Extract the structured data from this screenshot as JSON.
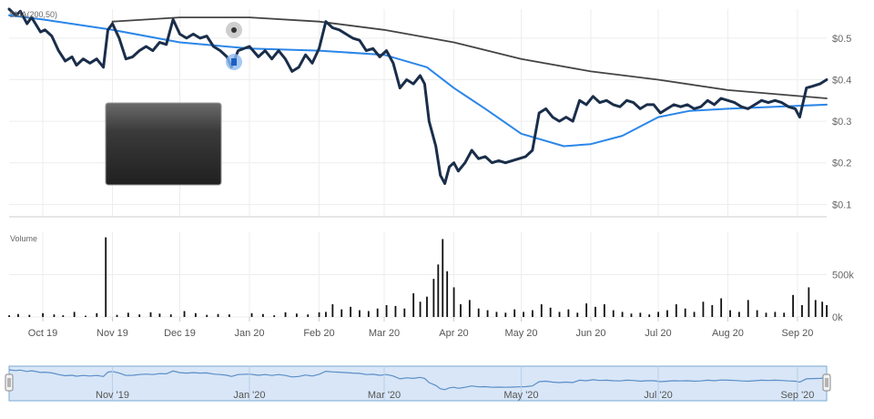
{
  "chart_data": {
    "type": "line",
    "indicator_label": "SMA(200,50)",
    "volume_label": "Volume",
    "price_axis": {
      "ticks": [
        0.1,
        0.2,
        0.3,
        0.4,
        0.5
      ],
      "tick_labels": [
        "$0.1",
        "$0.2",
        "$0.3",
        "$0.4",
        "$0.5"
      ],
      "range": [
        0.07,
        0.57
      ]
    },
    "volume_axis": {
      "ticks": [
        0,
        500000
      ],
      "tick_labels": [
        "0k",
        "500k"
      ],
      "range": [
        0,
        1000000
      ]
    },
    "x_range": [
      "2019-09-16",
      "2020-09-14"
    ],
    "date_labels": [
      {
        "date": "2019-10-01",
        "label": "Oct 19"
      },
      {
        "date": "2019-11-01",
        "label": "Nov 19"
      },
      {
        "date": "2019-12-01",
        "label": "Dec 19"
      },
      {
        "date": "2020-01-01",
        "label": "Jan 20"
      },
      {
        "date": "2020-02-01",
        "label": "Feb 20"
      },
      {
        "date": "2020-03-01",
        "label": "Mar 20"
      },
      {
        "date": "2020-04-01",
        "label": "Apr 20"
      },
      {
        "date": "2020-05-01",
        "label": "May 20"
      },
      {
        "date": "2020-06-01",
        "label": "Jun 20"
      },
      {
        "date": "2020-07-01",
        "label": "Jul 20"
      },
      {
        "date": "2020-08-01",
        "label": "Aug 20"
      },
      {
        "date": "2020-09-01",
        "label": "Sep 20"
      }
    ],
    "navigator_labels": [
      {
        "date": "2019-11-01",
        "label": "Nov '19"
      },
      {
        "date": "2020-01-01",
        "label": "Jan '20"
      },
      {
        "date": "2020-03-01",
        "label": "Mar '20"
      },
      {
        "date": "2020-05-01",
        "label": "May '20"
      },
      {
        "date": "2020-07-01",
        "label": "Jul '20"
      },
      {
        "date": "2020-09-01",
        "label": "Sep '20"
      }
    ],
    "series": [
      {
        "kind": "price",
        "color": "#1a2e4a",
        "points": [
          [
            "2019-09-16",
            0.57
          ],
          [
            "2019-09-19",
            0.555
          ],
          [
            "2019-09-21",
            0.565
          ],
          [
            "2019-09-24",
            0.535
          ],
          [
            "2019-09-26",
            0.55
          ],
          [
            "2019-09-30",
            0.515
          ],
          [
            "2019-10-02",
            0.52
          ],
          [
            "2019-10-05",
            0.505
          ],
          [
            "2019-10-08",
            0.47
          ],
          [
            "2019-10-11",
            0.445
          ],
          [
            "2019-10-14",
            0.455
          ],
          [
            "2019-10-16",
            0.435
          ],
          [
            "2019-10-19",
            0.45
          ],
          [
            "2019-10-22",
            0.44
          ],
          [
            "2019-10-25",
            0.45
          ],
          [
            "2019-10-28",
            0.43
          ],
          [
            "2019-10-30",
            0.52
          ],
          [
            "2019-11-01",
            0.535
          ],
          [
            "2019-11-04",
            0.5
          ],
          [
            "2019-11-07",
            0.45
          ],
          [
            "2019-11-10",
            0.455
          ],
          [
            "2019-11-13",
            0.47
          ],
          [
            "2019-11-16",
            0.48
          ],
          [
            "2019-11-19",
            0.47
          ],
          [
            "2019-11-22",
            0.49
          ],
          [
            "2019-11-25",
            0.485
          ],
          [
            "2019-11-28",
            0.545
          ],
          [
            "2019-12-01",
            0.51
          ],
          [
            "2019-12-04",
            0.5
          ],
          [
            "2019-12-07",
            0.51
          ],
          [
            "2019-12-10",
            0.5
          ],
          [
            "2019-12-13",
            0.505
          ],
          [
            "2019-12-16",
            0.48
          ],
          [
            "2019-12-19",
            0.47
          ],
          [
            "2019-12-22",
            0.455
          ],
          [
            "2019-12-24",
            0.43
          ],
          [
            "2019-12-27",
            0.47
          ],
          [
            "2020-01-01",
            0.48
          ],
          [
            "2020-01-05",
            0.455
          ],
          [
            "2020-01-08",
            0.47
          ],
          [
            "2020-01-11",
            0.45
          ],
          [
            "2020-01-14",
            0.47
          ],
          [
            "2020-01-17",
            0.45
          ],
          [
            "2020-01-20",
            0.42
          ],
          [
            "2020-01-23",
            0.43
          ],
          [
            "2020-01-26",
            0.46
          ],
          [
            "2020-01-29",
            0.44
          ],
          [
            "2020-02-01",
            0.475
          ],
          [
            "2020-02-04",
            0.54
          ],
          [
            "2020-02-07",
            0.525
          ],
          [
            "2020-02-10",
            0.52
          ],
          [
            "2020-02-13",
            0.51
          ],
          [
            "2020-02-16",
            0.5
          ],
          [
            "2020-02-19",
            0.495
          ],
          [
            "2020-02-22",
            0.47
          ],
          [
            "2020-02-25",
            0.475
          ],
          [
            "2020-02-28",
            0.455
          ],
          [
            "2020-03-02",
            0.47
          ],
          [
            "2020-03-05",
            0.44
          ],
          [
            "2020-03-08",
            0.38
          ],
          [
            "2020-03-11",
            0.4
          ],
          [
            "2020-03-14",
            0.39
          ],
          [
            "2020-03-17",
            0.41
          ],
          [
            "2020-03-19",
            0.39
          ],
          [
            "2020-03-21",
            0.3
          ],
          [
            "2020-03-24",
            0.24
          ],
          [
            "2020-03-26",
            0.17
          ],
          [
            "2020-03-28",
            0.15
          ],
          [
            "2020-03-30",
            0.19
          ],
          [
            "2020-04-01",
            0.2
          ],
          [
            "2020-04-03",
            0.18
          ],
          [
            "2020-04-06",
            0.2
          ],
          [
            "2020-04-09",
            0.23
          ],
          [
            "2020-04-12",
            0.21
          ],
          [
            "2020-04-15",
            0.215
          ],
          [
            "2020-04-18",
            0.2
          ],
          [
            "2020-04-21",
            0.205
          ],
          [
            "2020-04-24",
            0.2
          ],
          [
            "2020-04-27",
            0.205
          ],
          [
            "2020-04-30",
            0.21
          ],
          [
            "2020-05-03",
            0.215
          ],
          [
            "2020-05-06",
            0.23
          ],
          [
            "2020-05-09",
            0.32
          ],
          [
            "2020-05-12",
            0.33
          ],
          [
            "2020-05-15",
            0.31
          ],
          [
            "2020-05-18",
            0.3
          ],
          [
            "2020-05-21",
            0.31
          ],
          [
            "2020-05-24",
            0.3
          ],
          [
            "2020-05-27",
            0.35
          ],
          [
            "2020-05-30",
            0.34
          ],
          [
            "2020-06-02",
            0.36
          ],
          [
            "2020-06-05",
            0.345
          ],
          [
            "2020-06-08",
            0.35
          ],
          [
            "2020-06-11",
            0.34
          ],
          [
            "2020-06-14",
            0.335
          ],
          [
            "2020-06-17",
            0.35
          ],
          [
            "2020-06-20",
            0.345
          ],
          [
            "2020-06-23",
            0.33
          ],
          [
            "2020-06-26",
            0.34
          ],
          [
            "2020-06-29",
            0.34
          ],
          [
            "2020-07-02",
            0.32
          ],
          [
            "2020-07-05",
            0.33
          ],
          [
            "2020-07-08",
            0.34
          ],
          [
            "2020-07-11",
            0.335
          ],
          [
            "2020-07-14",
            0.34
          ],
          [
            "2020-07-17",
            0.33
          ],
          [
            "2020-07-20",
            0.335
          ],
          [
            "2020-07-23",
            0.35
          ],
          [
            "2020-07-26",
            0.34
          ],
          [
            "2020-07-29",
            0.355
          ],
          [
            "2020-08-01",
            0.35
          ],
          [
            "2020-08-04",
            0.345
          ],
          [
            "2020-08-07",
            0.335
          ],
          [
            "2020-08-10",
            0.33
          ],
          [
            "2020-08-13",
            0.34
          ],
          [
            "2020-08-16",
            0.35
          ],
          [
            "2020-08-19",
            0.345
          ],
          [
            "2020-08-22",
            0.35
          ],
          [
            "2020-08-25",
            0.345
          ],
          [
            "2020-08-28",
            0.335
          ],
          [
            "2020-08-31",
            0.33
          ],
          [
            "2020-09-02",
            0.31
          ],
          [
            "2020-09-05",
            0.38
          ],
          [
            "2020-09-08",
            0.385
          ],
          [
            "2020-09-11",
            0.39
          ],
          [
            "2020-09-14",
            0.4
          ]
        ]
      },
      {
        "kind": "sma-200",
        "color": "#444444",
        "points": [
          [
            "2019-11-01",
            0.54
          ],
          [
            "2019-12-01",
            0.55
          ],
          [
            "2020-01-01",
            0.55
          ],
          [
            "2020-02-01",
            0.54
          ],
          [
            "2020-03-01",
            0.52
          ],
          [
            "2020-04-01",
            0.49
          ],
          [
            "2020-05-01",
            0.45
          ],
          [
            "2020-06-01",
            0.42
          ],
          [
            "2020-07-01",
            0.4
          ],
          [
            "2020-08-01",
            0.375
          ],
          [
            "2020-09-14",
            0.355
          ]
        ]
      },
      {
        "kind": "sma-50",
        "color": "#2b86e8",
        "points": [
          [
            "2019-09-16",
            0.555
          ],
          [
            "2019-10-01",
            0.545
          ],
          [
            "2019-11-01",
            0.52
          ],
          [
            "2019-12-01",
            0.49
          ],
          [
            "2020-01-01",
            0.475
          ],
          [
            "2020-02-01",
            0.47
          ],
          [
            "2020-03-01",
            0.46
          ],
          [
            "2020-03-20",
            0.43
          ],
          [
            "2020-04-01",
            0.38
          ],
          [
            "2020-04-15",
            0.33
          ],
          [
            "2020-05-01",
            0.27
          ],
          [
            "2020-05-20",
            0.24
          ],
          [
            "2020-06-01",
            0.245
          ],
          [
            "2020-06-15",
            0.265
          ],
          [
            "2020-07-01",
            0.31
          ],
          [
            "2020-07-15",
            0.325
          ],
          [
            "2020-08-01",
            0.33
          ],
          [
            "2020-09-14",
            0.34
          ]
        ]
      }
    ],
    "volume": [
      [
        "2019-09-16",
        20000
      ],
      [
        "2019-09-20",
        35000
      ],
      [
        "2019-09-25",
        25000
      ],
      [
        "2019-10-01",
        45000
      ],
      [
        "2019-10-06",
        30000
      ],
      [
        "2019-10-10",
        20000
      ],
      [
        "2019-10-15",
        60000
      ],
      [
        "2019-10-20",
        15000
      ],
      [
        "2019-10-25",
        45000
      ],
      [
        "2019-10-29",
        940000
      ],
      [
        "2019-11-03",
        25000
      ],
      [
        "2019-11-08",
        50000
      ],
      [
        "2019-11-13",
        30000
      ],
      [
        "2019-11-18",
        55000
      ],
      [
        "2019-11-22",
        40000
      ],
      [
        "2019-11-27",
        30000
      ],
      [
        "2019-12-03",
        70000
      ],
      [
        "2019-12-08",
        45000
      ],
      [
        "2019-12-13",
        25000
      ],
      [
        "2019-12-18",
        35000
      ],
      [
        "2019-12-23",
        30000
      ],
      [
        "2020-01-02",
        45000
      ],
      [
        "2020-01-07",
        35000
      ],
      [
        "2020-01-12",
        20000
      ],
      [
        "2020-01-17",
        55000
      ],
      [
        "2020-01-22",
        40000
      ],
      [
        "2020-01-27",
        30000
      ],
      [
        "2020-02-01",
        55000
      ],
      [
        "2020-02-04",
        60000
      ],
      [
        "2020-02-07",
        150000
      ],
      [
        "2020-02-11",
        90000
      ],
      [
        "2020-02-15",
        120000
      ],
      [
        "2020-02-19",
        80000
      ],
      [
        "2020-02-23",
        70000
      ],
      [
        "2020-02-27",
        100000
      ],
      [
        "2020-03-02",
        140000
      ],
      [
        "2020-03-06",
        130000
      ],
      [
        "2020-03-10",
        100000
      ],
      [
        "2020-03-14",
        280000
      ],
      [
        "2020-03-17",
        180000
      ],
      [
        "2020-03-20",
        240000
      ],
      [
        "2020-03-23",
        450000
      ],
      [
        "2020-03-25",
        620000
      ],
      [
        "2020-03-27",
        920000
      ],
      [
        "2020-03-29",
        540000
      ],
      [
        "2020-04-01",
        350000
      ],
      [
        "2020-04-04",
        150000
      ],
      [
        "2020-04-08",
        200000
      ],
      [
        "2020-04-12",
        100000
      ],
      [
        "2020-04-16",
        80000
      ],
      [
        "2020-04-20",
        60000
      ],
      [
        "2020-04-24",
        50000
      ],
      [
        "2020-04-28",
        90000
      ],
      [
        "2020-05-02",
        60000
      ],
      [
        "2020-05-06",
        80000
      ],
      [
        "2020-05-10",
        150000
      ],
      [
        "2020-05-14",
        110000
      ],
      [
        "2020-05-18",
        60000
      ],
      [
        "2020-05-22",
        90000
      ],
      [
        "2020-05-26",
        50000
      ],
      [
        "2020-05-30",
        160000
      ],
      [
        "2020-06-03",
        120000
      ],
      [
        "2020-06-07",
        150000
      ],
      [
        "2020-06-11",
        80000
      ],
      [
        "2020-06-15",
        60000
      ],
      [
        "2020-06-19",
        40000
      ],
      [
        "2020-06-23",
        50000
      ],
      [
        "2020-06-27",
        30000
      ],
      [
        "2020-07-01",
        60000
      ],
      [
        "2020-07-05",
        80000
      ],
      [
        "2020-07-09",
        150000
      ],
      [
        "2020-07-13",
        100000
      ],
      [
        "2020-07-17",
        60000
      ],
      [
        "2020-07-21",
        180000
      ],
      [
        "2020-07-25",
        140000
      ],
      [
        "2020-07-29",
        220000
      ],
      [
        "2020-08-02",
        80000
      ],
      [
        "2020-08-06",
        60000
      ],
      [
        "2020-08-10",
        200000
      ],
      [
        "2020-08-14",
        80000
      ],
      [
        "2020-08-18",
        50000
      ],
      [
        "2020-08-22",
        60000
      ],
      [
        "2020-08-26",
        50000
      ],
      [
        "2020-08-30",
        260000
      ],
      [
        "2020-09-03",
        140000
      ],
      [
        "2020-09-06",
        350000
      ],
      [
        "2020-09-09",
        200000
      ],
      [
        "2020-09-12",
        180000
      ],
      [
        "2020-09-14",
        140000
      ]
    ]
  }
}
